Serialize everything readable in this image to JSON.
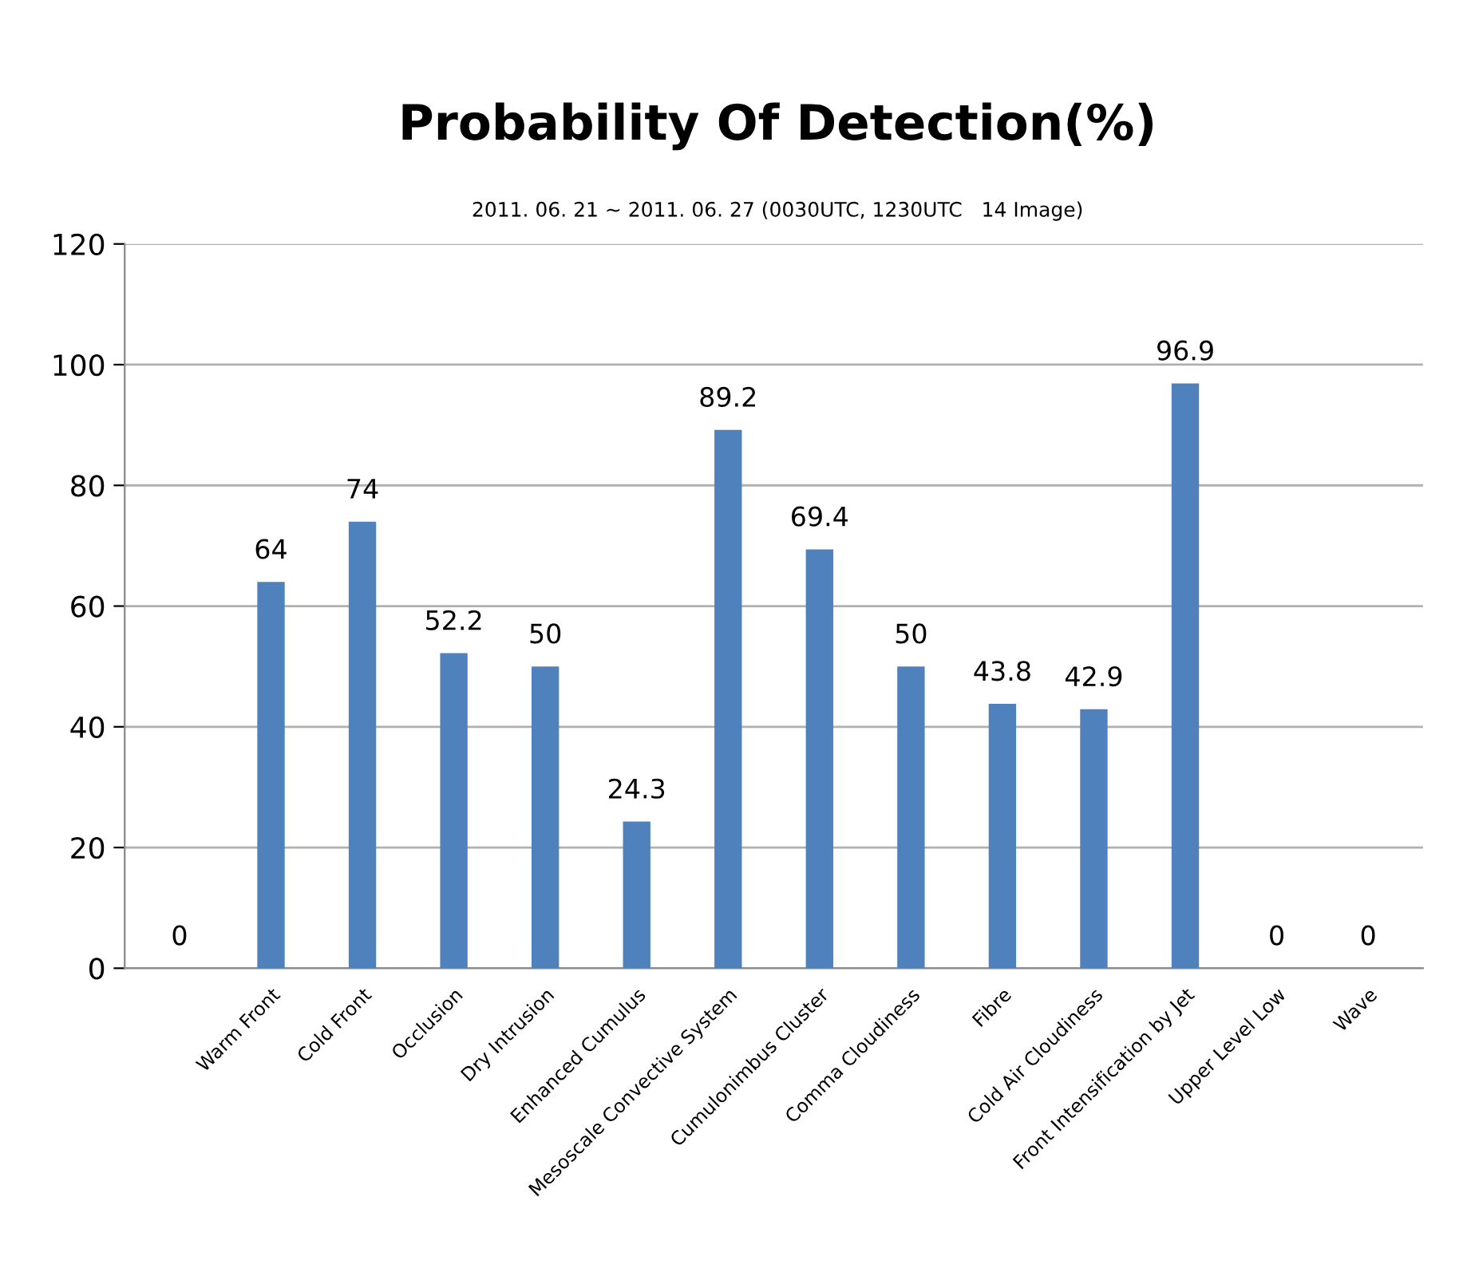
{
  "chart_data": {
    "type": "bar",
    "title": "Probability Of Detection(%)",
    "subtitle": "2011. 06. 21 ~ 2011. 06. 27 (0030UTC, 1230UTC   14 Image)",
    "categories": [
      null,
      "Warm Front",
      "Cold Front",
      "Occlusion",
      "Dry Intrusion",
      "Enhanced Cumulus",
      "Mesoscale Convective System",
      "Cumulonimbus Cluster",
      "Comma Cloudiness",
      "Fibre",
      "Cold Air Cloudiness",
      "Front Intensification by Jet",
      "Upper Level Low",
      "Wave"
    ],
    "values": [
      0,
      64,
      74,
      52.2,
      50,
      24.3,
      89.2,
      69.4,
      50,
      43.8,
      42.9,
      96.9,
      0,
      0
    ],
    "color": "#4f81bd",
    "ylim": [
      0,
      120
    ],
    "yticks": [
      0,
      20,
      40,
      60,
      80,
      100,
      120
    ],
    "grid": "y",
    "data_labels": true,
    "legend": false
  }
}
